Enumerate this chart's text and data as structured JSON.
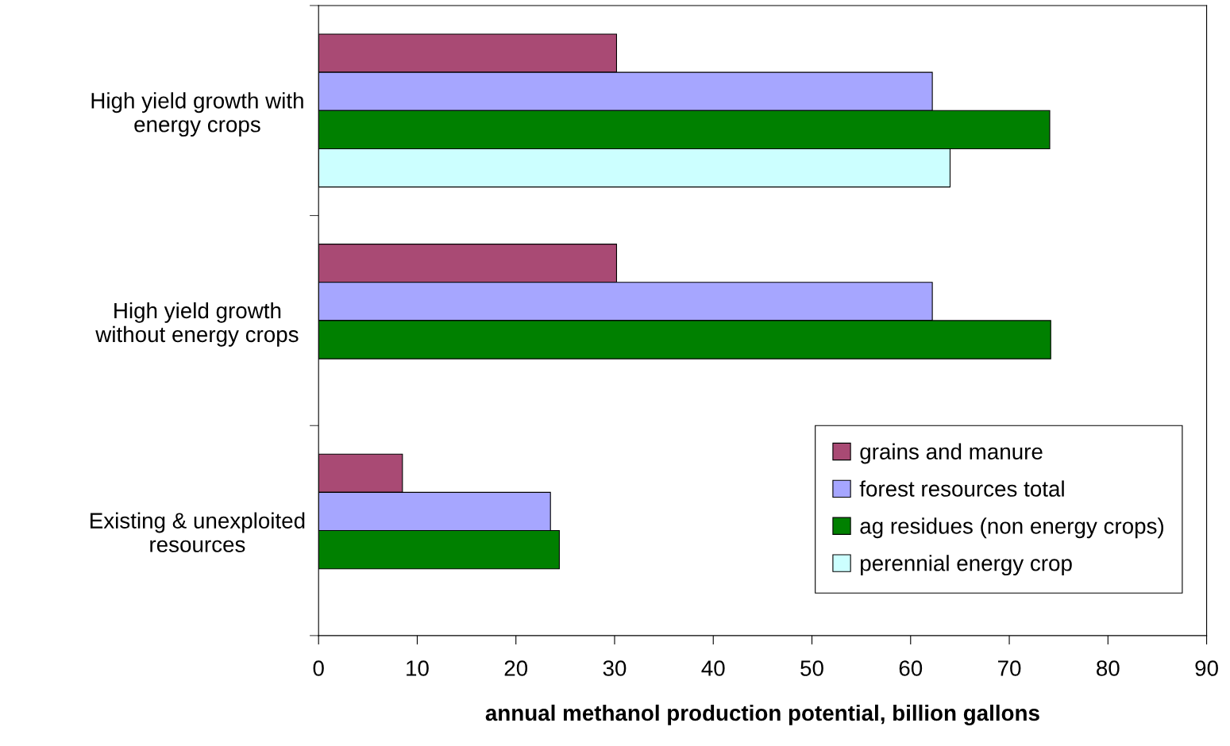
{
  "chart_data": {
    "type": "bar",
    "orientation": "horizontal",
    "xlabel": "annual methanol production potential, billion gallons",
    "categories": [
      "High yield growth with\nenergy crops",
      "High yield growth\nwithout energy crops",
      "Existing & unexploited\nresources"
    ],
    "series": [
      {
        "name": "grains and manure",
        "color": "#a94a74",
        "values": [
          30.2,
          30.2,
          8.5
        ]
      },
      {
        "name": "forest resources total",
        "color": "#a6a6ff",
        "values": [
          62.2,
          62.2,
          23.5
        ]
      },
      {
        "name": "ag residues (non energy crops)",
        "color": "#008000",
        "values": [
          74.1,
          74.2,
          24.4
        ]
      },
      {
        "name": "perennial energy crop",
        "color": "#ccffff",
        "values": [
          64.0,
          null,
          null
        ]
      }
    ],
    "xlim": [
      0,
      90
    ],
    "xticks": [
      0,
      10,
      20,
      30,
      40,
      50,
      60,
      70,
      80,
      90
    ],
    "grid": false,
    "legend": "bottom right"
  }
}
